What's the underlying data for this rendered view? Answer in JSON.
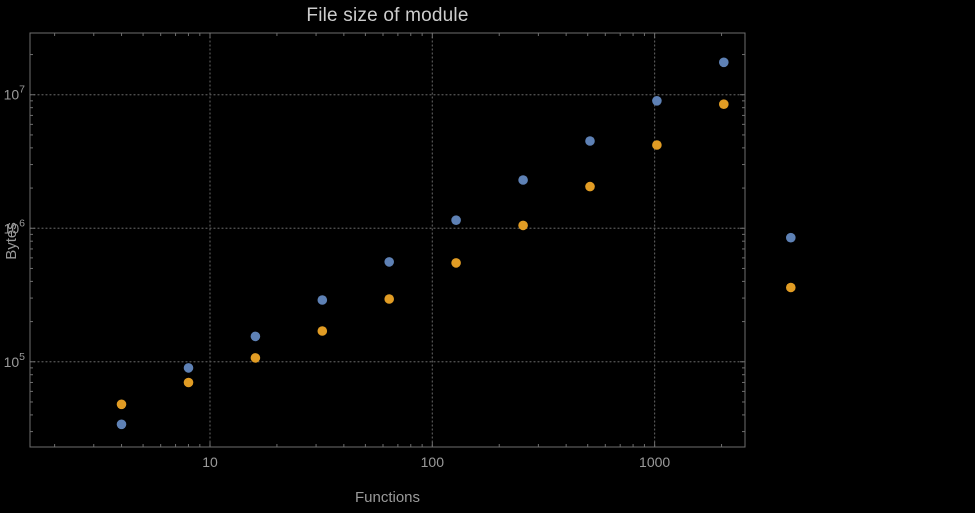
{
  "chart_data": {
    "type": "scatter",
    "title": "File size of module",
    "xlabel": "Functions",
    "ylabel": "Bytes",
    "x_scale": "log",
    "y_scale": "log",
    "xlim": [
      1.55,
      2550
    ],
    "ylim": [
      23000,
      29000000
    ],
    "x_ticks": [
      10,
      100,
      1000
    ],
    "x_tick_labels": [
      "10",
      "100",
      "1000"
    ],
    "y_ticks": [
      100000,
      1000000,
      10000000
    ],
    "y_tick_labels": [
      "10^5",
      "10^6",
      "10^7"
    ],
    "grid": "dotted",
    "legend": "none",
    "x": [
      4,
      8,
      16,
      32,
      64,
      128,
      256,
      512,
      1024,
      2048,
      4096
    ],
    "series": [
      {
        "name": "blue",
        "color": "#5E81B5",
        "values": [
          34000,
          90000,
          155000,
          290000,
          560000,
          1150000,
          2300000,
          4500000,
          9000000,
          17500000,
          850000
        ]
      },
      {
        "name": "orange",
        "color": "#E19C24",
        "values": [
          48000,
          70000,
          107000,
          170000,
          295000,
          550000,
          1050000,
          2050000,
          4200000,
          8500000,
          360000
        ]
      }
    ],
    "colors": {
      "background": "#000000",
      "frame": "#6e6e6e",
      "grid": "#575757",
      "tick_label": "#9a9a9a",
      "title": "#cdcdcd",
      "axis_label": "#9a9a9a"
    }
  }
}
